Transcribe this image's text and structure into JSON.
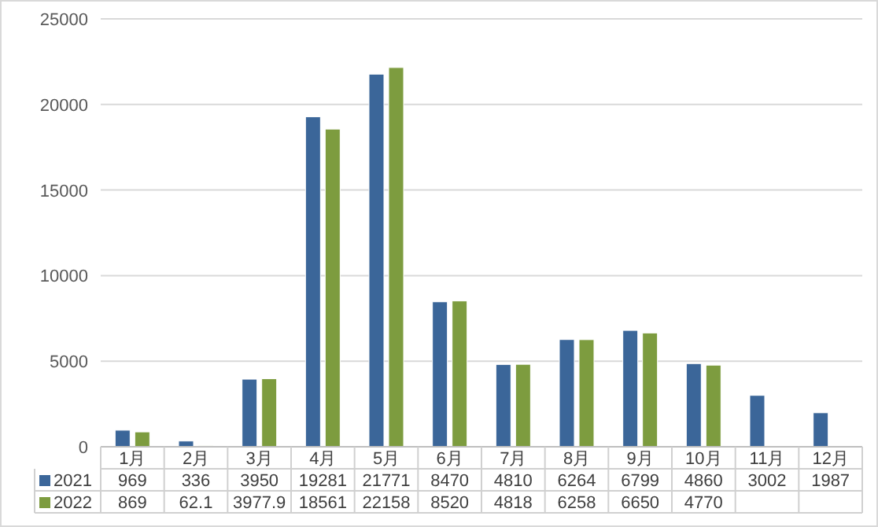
{
  "chart_data": {
    "type": "bar",
    "categories": [
      "1月",
      "2月",
      "3月",
      "4月",
      "5月",
      "6月",
      "7月",
      "8月",
      "9月",
      "10月",
      "11月",
      "12月"
    ],
    "series": [
      {
        "name": "2021",
        "color": "#3b6699",
        "values": [
          969,
          336,
          3950,
          19281,
          21771,
          8470,
          4810,
          6264,
          6799,
          4860,
          3002,
          1987
        ]
      },
      {
        "name": "2022",
        "color": "#7d9c3f",
        "values": [
          869,
          62.1,
          3977.9,
          18561,
          22158,
          8520,
          4818,
          6258,
          6650,
          4770,
          null,
          null
        ]
      }
    ],
    "ylim": [
      0,
      25000
    ],
    "yticks": [
      0,
      5000,
      10000,
      15000,
      20000,
      25000
    ],
    "grid": "y",
    "legend": "bottom",
    "data_labels": true
  }
}
